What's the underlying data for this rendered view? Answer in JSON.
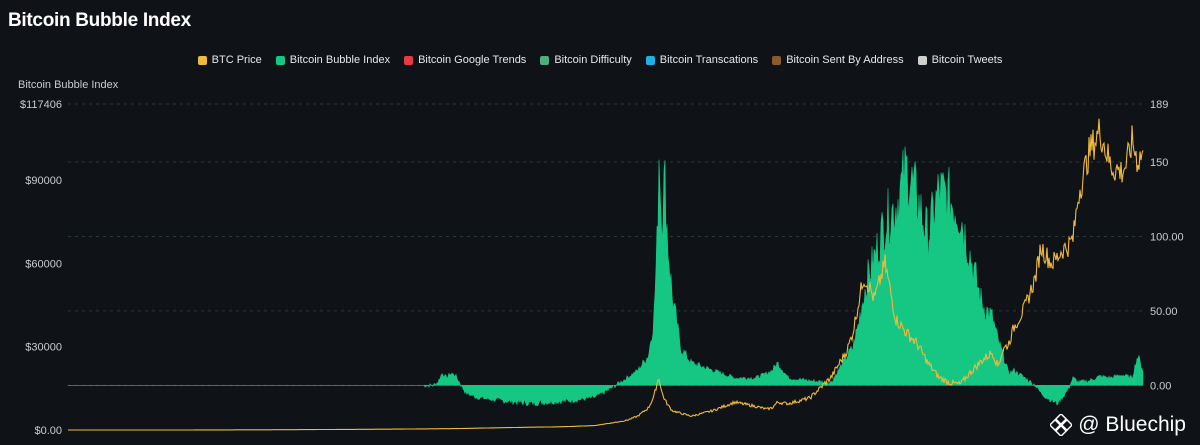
{
  "header": {
    "title": "Bitcoin Bubble Index"
  },
  "chart_data": {
    "type": "area",
    "title": "Bitcoin Bubble Index",
    "ylabel": "Bitcoin Bubble Index",
    "legend_position": "top-center",
    "grid": true,
    "left_axis": {
      "ticks": [
        "$117406",
        "$90000",
        "$60000",
        "$30000",
        "$0.00"
      ],
      "tick_values": [
        117406,
        90000,
        60000,
        30000,
        0
      ],
      "range": [
        0,
        117406
      ]
    },
    "right_axis": {
      "ticks": [
        "189",
        "150",
        "100.00",
        "50.00",
        "0.00"
      ],
      "tick_values": [
        189,
        150,
        100,
        50,
        0
      ],
      "range": [
        -30,
        189
      ]
    },
    "legend": [
      {
        "name": "BTC Price",
        "color": "#f0b93a"
      },
      {
        "name": "Bitcoin Bubble Index",
        "color": "#16c784"
      },
      {
        "name": "Bitcoin Google Trends",
        "color": "#ea3943"
      },
      {
        "name": "Bitcoin Difficulty",
        "color": "#4caf7d"
      },
      {
        "name": "Bitcoin Transcations",
        "color": "#1ab2e8"
      },
      {
        "name": "Bitcoin Sent By Address",
        "color": "#8b5a2b"
      },
      {
        "name": "Bitcoin Tweets",
        "color": "#cfcfcf"
      }
    ],
    "series": [
      {
        "name": "Bitcoin Bubble Index",
        "axis": "right",
        "color": "#16c784",
        "x": [
          0,
          0.1,
          0.2,
          0.3,
          0.34,
          0.344,
          0.348,
          0.352,
          0.356,
          0.36,
          0.37,
          0.38,
          0.4,
          0.43,
          0.45,
          0.47,
          0.49,
          0.505,
          0.52,
          0.53,
          0.54,
          0.545,
          0.548,
          0.55,
          0.552,
          0.555,
          0.558,
          0.562,
          0.57,
          0.58,
          0.6,
          0.62,
          0.64,
          0.65,
          0.655,
          0.66,
          0.67,
          0.69,
          0.71,
          0.725,
          0.73,
          0.735,
          0.74,
          0.745,
          0.75,
          0.76,
          0.77,
          0.78,
          0.79,
          0.8,
          0.81,
          0.82,
          0.83,
          0.84,
          0.85,
          0.86,
          0.865,
          0.87,
          0.875,
          0.88,
          0.89,
          0.9,
          0.905,
          0.91,
          0.915,
          0.92,
          0.925,
          0.93,
          0.935,
          0.94,
          0.95,
          0.96,
          0.97,
          0.98,
          0.99,
          0.995,
          1
        ],
        "y": [
          0,
          0,
          0,
          0,
          0,
          2,
          8,
          5,
          8,
          7,
          -5,
          -8,
          -10,
          -12,
          -11,
          -10,
          -8,
          -2,
          5,
          10,
          20,
          45,
          95,
          165,
          110,
          140,
          95,
          60,
          25,
          15,
          10,
          5,
          5,
          8,
          10,
          15,
          5,
          3,
          2,
          20,
          25,
          40,
          60,
          75,
          85,
          110,
          120,
          145,
          125,
          100,
          130,
          125,
          115,
          85,
          55,
          45,
          30,
          20,
          8,
          10,
          5,
          0,
          -5,
          -8,
          -10,
          -12,
          -8,
          -3,
          5,
          2,
          3,
          6,
          5,
          7,
          5,
          20,
          10
        ]
      },
      {
        "name": "BTC Price",
        "axis": "left",
        "color": "#f0b93a",
        "x": [
          0,
          0.1,
          0.2,
          0.3,
          0.36,
          0.4,
          0.43,
          0.45,
          0.47,
          0.49,
          0.505,
          0.52,
          0.53,
          0.54,
          0.545,
          0.548,
          0.55,
          0.552,
          0.555,
          0.558,
          0.562,
          0.57,
          0.58,
          0.6,
          0.62,
          0.64,
          0.65,
          0.655,
          0.66,
          0.67,
          0.69,
          0.71,
          0.725,
          0.73,
          0.735,
          0.74,
          0.745,
          0.75,
          0.76,
          0.77,
          0.78,
          0.79,
          0.8,
          0.81,
          0.82,
          0.83,
          0.84,
          0.85,
          0.86,
          0.865,
          0.87,
          0.875,
          0.88,
          0.89,
          0.9,
          0.905,
          0.91,
          0.915,
          0.92,
          0.925,
          0.93,
          0.935,
          0.94,
          0.95,
          0.96,
          0.97,
          0.98,
          0.985,
          0.99,
          0.995,
          1
        ],
        "y": [
          0,
          0,
          100,
          300,
          500,
          800,
          1000,
          1100,
          1300,
          1600,
          2500,
          3500,
          5000,
          8000,
          12000,
          17000,
          19000,
          14000,
          11000,
          9000,
          7000,
          6000,
          5000,
          7000,
          10000,
          8500,
          7500,
          8000,
          10000,
          9500,
          11500,
          19000,
          29000,
          35000,
          45000,
          55000,
          52000,
          47000,
          60000,
          40000,
          35000,
          31000,
          24000,
          19000,
          17000,
          16500,
          21000,
          25000,
          28000,
          23000,
          29000,
          31000,
          37000,
          44000,
          55000,
          66000,
          63000,
          60000,
          62000,
          65000,
          66000,
          69000,
          85000,
          100000,
          108000,
          95000,
          93000,
          96000,
          104000,
          97000,
          100000
        ]
      }
    ],
    "watermark": "@ Bluechip"
  }
}
